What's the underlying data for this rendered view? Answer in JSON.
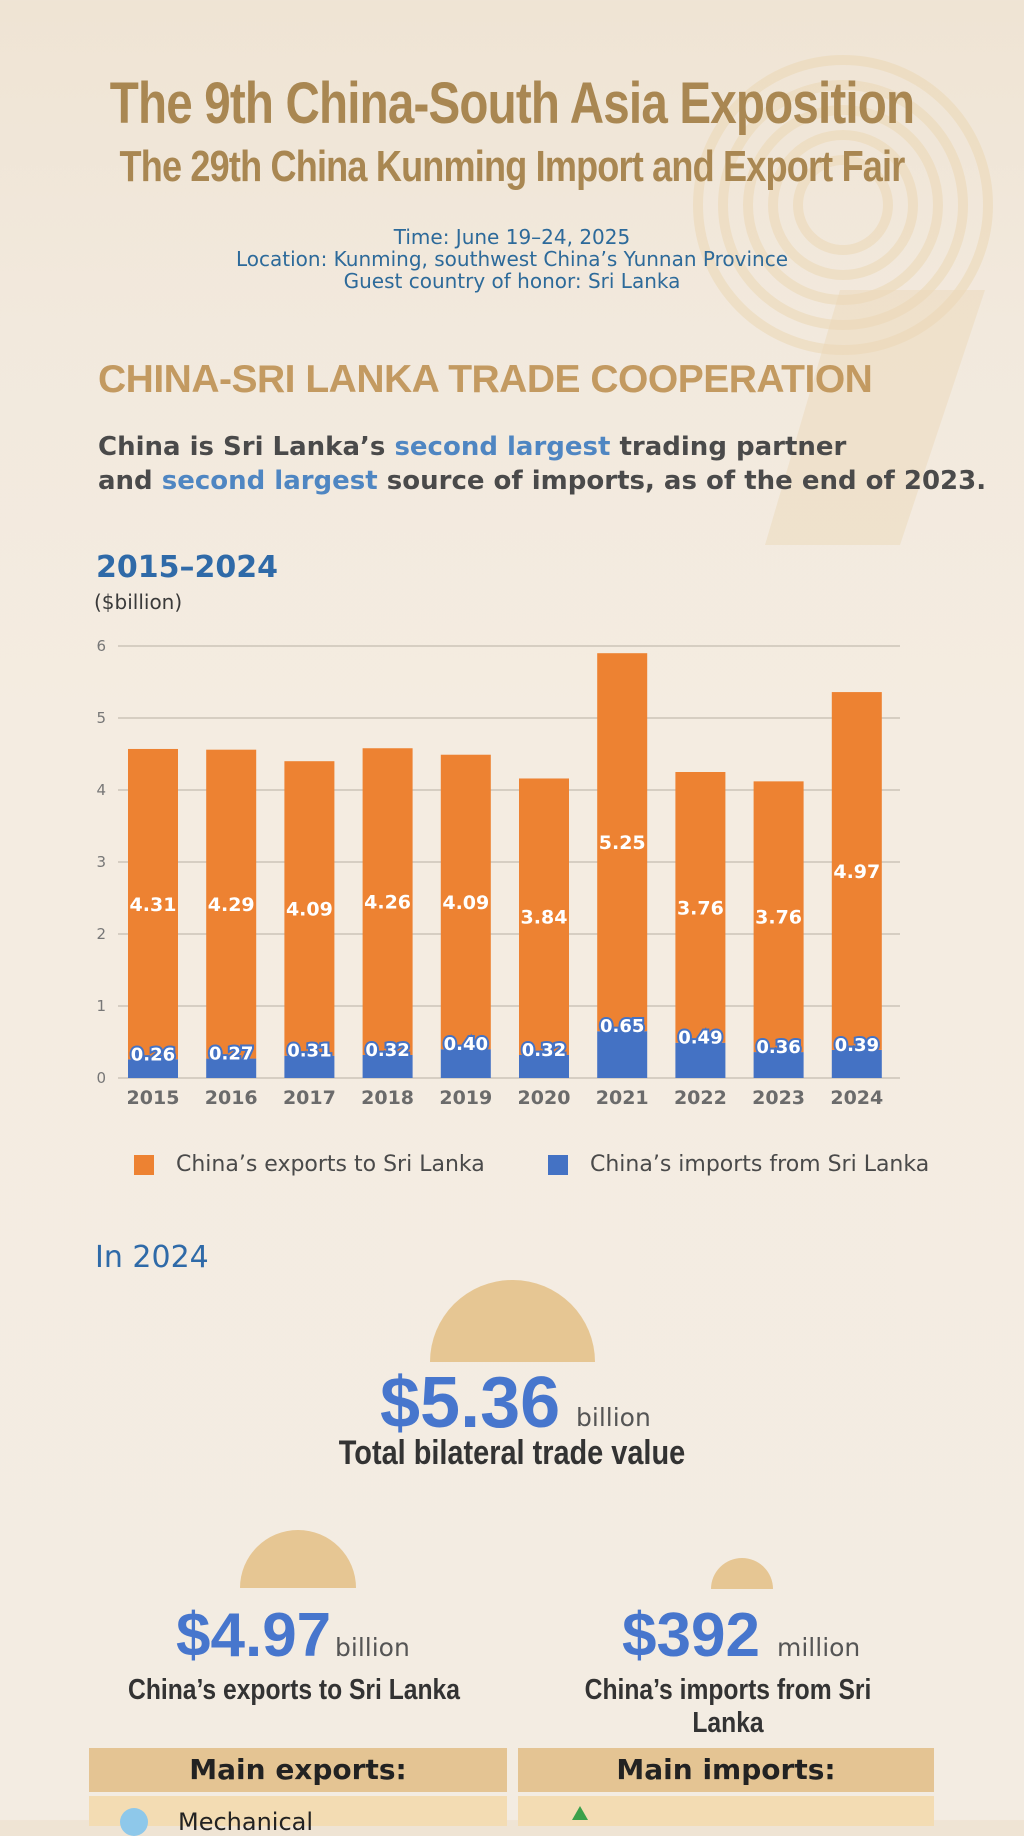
{
  "header": {
    "title_line1": "The 9th China-South Asia Exposition",
    "title_line2": "The 29th China Kunming Import and Export Fair",
    "time": "Time: June 19–24, 2025",
    "location": "Location: Kunming, southwest China’s Yunnan Province",
    "guest": "Guest country of honor: Sri Lanka"
  },
  "section": {
    "title": "CHINA-SRI LANKA TRADE COOPERATION",
    "line1_a": "China is Sri Lanka’s ",
    "line1_hl": "second largest",
    "line1_b": " trading partner",
    "line2_a": "and ",
    "line2_hl": "second largest",
    "line2_b": " source of imports, as of the end of 2023."
  },
  "chart_data": {
    "type": "bar",
    "stacked": true,
    "title": "2015–2024",
    "ylabel": "($billion)",
    "categories": [
      "2015",
      "2016",
      "2017",
      "2018",
      "2019",
      "2020",
      "2021",
      "2022",
      "2023",
      "2024"
    ],
    "series": [
      {
        "name": "China’s imports from Sri Lanka",
        "color": "#4472c4",
        "values": [
          0.26,
          0.27,
          0.31,
          0.32,
          0.4,
          0.32,
          0.65,
          0.49,
          0.36,
          0.39
        ]
      },
      {
        "name": "China’s exports to Sri Lanka",
        "color": "#ed8232",
        "values": [
          4.31,
          4.29,
          4.09,
          4.26,
          4.09,
          3.84,
          5.25,
          3.76,
          3.76,
          4.97
        ]
      }
    ],
    "ylim": [
      0,
      6
    ],
    "yticks": [
      0,
      1,
      2,
      3,
      4,
      5,
      6
    ],
    "grid": true,
    "legend_position": "bottom"
  },
  "legend": {
    "exports_label": "China’s exports to Sri Lanka",
    "imports_label": "China’s imports from Sri Lanka"
  },
  "stats": {
    "heading": "In 2024",
    "total_value": "$5.36",
    "total_unit": "billion",
    "total_caption": "Total bilateral trade value",
    "exports_value": "$4.97",
    "exports_unit": "billion",
    "exports_caption": "China’s exports to Sri Lanka",
    "imports_value": "$392",
    "imports_unit": "million",
    "imports_caption": "China’s imports from Sri Lanka"
  },
  "boxes": {
    "exports_head": "Main exports:",
    "imports_head": "Main imports:",
    "exports_first": "Mechanical"
  },
  "colors": {
    "accent_gold": "#a98752",
    "accent_blue": "#4776cd",
    "exports_orange": "#ed8232",
    "imports_blue": "#4472c4"
  }
}
